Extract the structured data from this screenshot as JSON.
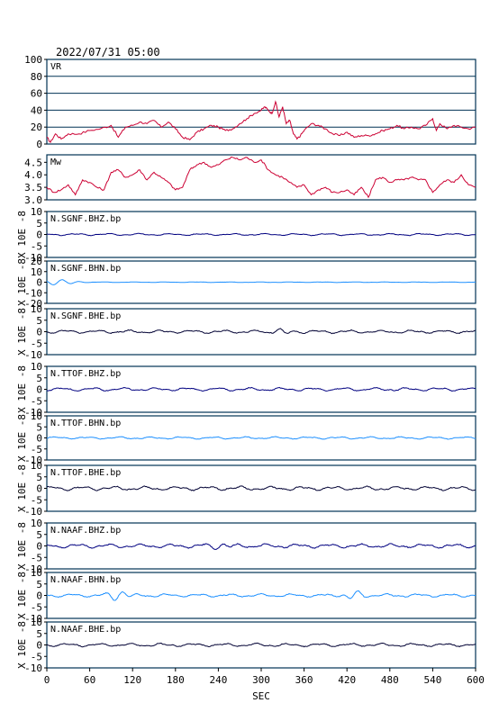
{
  "chart_data": {
    "type": "line",
    "title": "2022/07/31 05:00",
    "xlabel": "SEC",
    "xlim": [
      0,
      600
    ],
    "xticks": [
      0,
      60,
      120,
      180,
      240,
      300,
      360,
      420,
      480,
      540,
      600
    ],
    "colors": {
      "vr_mw": "#cc0033",
      "bhz": "#000080",
      "bhn": "#1e90ff",
      "bhe": "#000033",
      "grid": "#003355"
    },
    "panels": [
      {
        "label": "VR",
        "type": "vr",
        "ylim": [
          0,
          100
        ],
        "yticks": [
          0,
          20,
          40,
          60,
          80,
          100
        ],
        "gridlines": [
          20,
          40,
          60,
          80
        ],
        "x": [
          0,
          5,
          12,
          20,
          30,
          45,
          60,
          75,
          90,
          100,
          110,
          120,
          130,
          140,
          150,
          160,
          170,
          180,
          190,
          200,
          210,
          220,
          230,
          240,
          250,
          260,
          270,
          280,
          290,
          300,
          305,
          310,
          315,
          320,
          325,
          330,
          335,
          340,
          345,
          350,
          355,
          360,
          370,
          380,
          390,
          400,
          410,
          420,
          430,
          440,
          450,
          460,
          470,
          480,
          490,
          500,
          510,
          520,
          530,
          540,
          545,
          550,
          560,
          570,
          580,
          590,
          600
        ],
        "y": [
          8,
          2,
          12,
          6,
          12,
          12,
          16,
          18,
          22,
          8,
          20,
          22,
          26,
          24,
          28,
          20,
          26,
          18,
          8,
          5,
          14,
          18,
          22,
          20,
          16,
          18,
          24,
          30,
          36,
          40,
          44,
          40,
          36,
          50,
          32,
          44,
          24,
          28,
          12,
          6,
          10,
          16,
          24,
          22,
          18,
          12,
          10,
          14,
          8,
          10,
          10,
          12,
          16,
          18,
          22,
          18,
          20,
          18,
          22,
          30,
          16,
          24,
          18,
          22,
          20,
          18,
          20
        ]
      },
      {
        "label": "Mw",
        "type": "mw",
        "ylim": [
          3.0,
          4.8
        ],
        "yticks": [
          3.0,
          3.5,
          4.0,
          4.5
        ],
        "x": [
          0,
          10,
          20,
          30,
          40,
          50,
          60,
          70,
          80,
          90,
          100,
          110,
          120,
          130,
          140,
          150,
          160,
          170,
          180,
          190,
          200,
          210,
          220,
          230,
          240,
          250,
          260,
          270,
          280,
          290,
          300,
          310,
          320,
          330,
          340,
          350,
          360,
          370,
          380,
          390,
          400,
          410,
          420,
          430,
          440,
          450,
          460,
          470,
          480,
          490,
          500,
          510,
          520,
          530,
          540,
          550,
          560,
          570,
          580,
          590,
          600
        ],
        "y": [
          3.5,
          3.3,
          3.4,
          3.6,
          3.2,
          3.8,
          3.7,
          3.5,
          3.4,
          4.1,
          4.2,
          3.9,
          4.0,
          4.2,
          3.8,
          4.1,
          3.9,
          3.7,
          3.4,
          3.5,
          4.2,
          4.4,
          4.5,
          4.3,
          4.4,
          4.6,
          4.7,
          4.6,
          4.7,
          4.5,
          4.6,
          4.2,
          4.0,
          3.9,
          3.7,
          3.5,
          3.6,
          3.2,
          3.4,
          3.5,
          3.3,
          3.3,
          3.4,
          3.2,
          3.5,
          3.1,
          3.8,
          3.9,
          3.7,
          3.8,
          3.8,
          3.9,
          3.8,
          3.8,
          3.3,
          3.6,
          3.8,
          3.7,
          4.0,
          3.6,
          3.5
        ]
      },
      {
        "label": "N.SGNF.BHZ.bp",
        "type": "bhz",
        "ylim": [
          -10,
          10
        ],
        "yticks": [
          -10,
          -5,
          0,
          5,
          10
        ],
        "ylabel": "X 10E -8",
        "wiggle": 0.5
      },
      {
        "label": "N.SGNF.BHN.bp",
        "type": "bhn",
        "ylim": [
          -20,
          20
        ],
        "yticks": [
          -20,
          -10,
          0,
          10,
          20
        ],
        "ylabel": "X 10E -8",
        "wiggle": 0.3,
        "features": [
          {
            "x": 15,
            "amp": 2.5,
            "w": 25
          }
        ]
      },
      {
        "label": "N.SGNF.BHE.bp",
        "type": "bhe",
        "ylim": [
          -10,
          10
        ],
        "yticks": [
          -10,
          -5,
          0,
          5,
          10
        ],
        "ylabel": "X 10E -8",
        "wiggle": 0.8,
        "features": [
          {
            "x": 330,
            "amp": -1.5,
            "w": 12
          }
        ]
      },
      {
        "label": "N.TTOF.BHZ.bp",
        "type": "bhz",
        "ylim": [
          -10,
          10
        ],
        "yticks": [
          -10,
          -5,
          0,
          5,
          10
        ],
        "ylabel": "X 10E -8",
        "wiggle": 0.8
      },
      {
        "label": "N.TTOF.BHN.bp",
        "type": "bhn",
        "ylim": [
          -10,
          10
        ],
        "yticks": [
          -10,
          -5,
          0,
          5,
          10
        ],
        "ylabel": "X 10E -8",
        "wiggle": 0.6
      },
      {
        "label": "N.TTOF.BHE.bp",
        "type": "bhe",
        "ylim": [
          -10,
          10
        ],
        "yticks": [
          -10,
          -5,
          0,
          5,
          10
        ],
        "ylabel": "X 10E -8",
        "wiggle": 1.0
      },
      {
        "label": "N.NAAF.BHZ.bp",
        "type": "bhz",
        "ylim": [
          -10,
          10
        ],
        "yticks": [
          -10,
          -5,
          0,
          5,
          10
        ],
        "ylabel": "X 10E -8",
        "wiggle": 1.0,
        "features": [
          {
            "x": 240,
            "amp": 1.0,
            "w": 20
          }
        ]
      },
      {
        "label": "N.NAAF.BHN.bp",
        "type": "bhn",
        "ylim": [
          -10,
          10
        ],
        "yticks": [
          -10,
          -5,
          0,
          5,
          10
        ],
        "ylabel": "X 10E -8",
        "wiggle": 0.8,
        "features": [
          {
            "x": 100,
            "amp": 2.0,
            "w": 15
          },
          {
            "x": 430,
            "amp": 1.5,
            "w": 15
          }
        ]
      },
      {
        "label": "N.NAAF.BHE.bp",
        "type": "bhe",
        "ylim": [
          -10,
          10
        ],
        "yticks": [
          -10,
          -5,
          0,
          5,
          10
        ],
        "ylabel": "X 10E -8",
        "wiggle": 0.8
      }
    ]
  }
}
